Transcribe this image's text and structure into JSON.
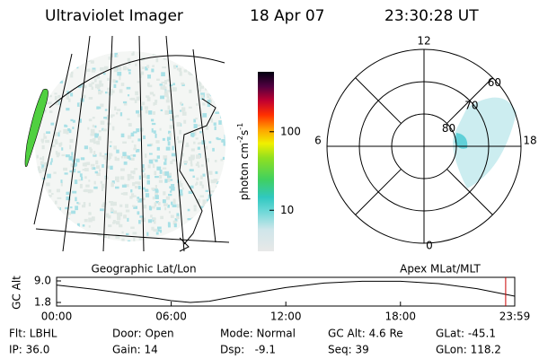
{
  "header": {
    "title": "Ultraviolet Imager",
    "date": "18 Apr 07",
    "time": "23:30:28 UT"
  },
  "geo_panel": {
    "caption": "Geographic Lat/Lon"
  },
  "colorbar": {
    "label": "photon cm",
    "exp1": "-2",
    "unit2": "s",
    "exp2": "-1",
    "log": true,
    "clim": [
      3,
      580
    ],
    "ticks": [
      100,
      10
    ]
  },
  "polar_panel": {
    "caption": "Apex MLat/MLT",
    "hour_labels": [
      12,
      18,
      6,
      0
    ],
    "lat_labels": [
      60,
      70,
      80
    ],
    "lat_range": [
      60,
      90
    ]
  },
  "altitude_plot": {
    "ylabel": "GC Alt",
    "ylim": [
      1.8,
      9.0
    ],
    "yticks": [
      {
        "value": 9.0,
        "label": "9.0"
      },
      {
        "value": 1.8,
        "label": "1.8"
      }
    ],
    "xlim": [
      0,
      23.983
    ],
    "xticks": [
      {
        "value": 0,
        "label": "00:00"
      },
      {
        "value": 6,
        "label": "06:00"
      },
      {
        "value": 12,
        "label": "12:00"
      },
      {
        "value": 18,
        "label": "18:00"
      },
      {
        "value": 23.983,
        "label": "23:59"
      }
    ],
    "x": [
      0,
      2,
      4,
      6,
      7,
      8,
      10,
      12,
      14,
      16,
      18,
      20,
      22,
      23.983
    ],
    "values": [
      7.6,
      6.2,
      4.4,
      2.4,
      1.8,
      2.2,
      4.6,
      6.8,
      8.3,
      8.9,
      8.9,
      8.1,
      6.4,
      3.9
    ],
    "marker_time": 23.508,
    "marker_color": "#cc0000"
  },
  "footer": {
    "rows": [
      [
        "Flt: LBHL",
        "Door: Open",
        "Mode: Normal",
        "GC Alt: 4.6 Re",
        "GLat: -45.1"
      ],
      [
        "IP: 36.0",
        "Gain: 14",
        "Dsp:   -9.1",
        "Seq: 39",
        "GLon: 118.2"
      ]
    ]
  }
}
